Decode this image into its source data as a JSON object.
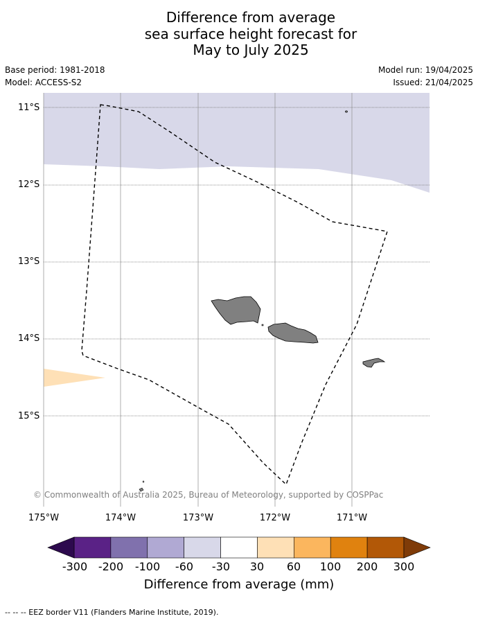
{
  "title": {
    "line1": "Difference from average",
    "line2": "sea surface height forecast for",
    "line3": "May to July 2025"
  },
  "meta": {
    "base_period": "Base period: 1981-2018",
    "model": "Model: ACCESS-S2",
    "model_run": "Model run: 19/04/2025",
    "issued": "Issued: 21/04/2025"
  },
  "map": {
    "lat_labels": [
      "11°S",
      "12°S",
      "13°S",
      "14°S",
      "15°S"
    ],
    "lon_labels": [
      "175°W",
      "174°W",
      "173°W",
      "172°W",
      "171°W"
    ],
    "copyright": "© Commonwealth of Australia 2025, Bureau of Meteorology, supported by COSPPac",
    "land_color": "#808080",
    "eez_style": "dashed black"
  },
  "colorbar": {
    "ticks": [
      "-300",
      "-200",
      "-100",
      "-60",
      "-30",
      "30",
      "60",
      "100",
      "200",
      "300"
    ],
    "colors": [
      "#2d0a4e",
      "#5a2286",
      "#8071ad",
      "#b0a9d3",
      "#d8d8e9",
      "#ffffff",
      "#fee0b6",
      "#fbb65e",
      "#e0820f",
      "#b25807",
      "#7f3b08"
    ],
    "label": "Difference from average (mm)"
  },
  "footnote": "--  --  -- EEZ border V11 (Flanders Marine Institute, 2019)."
}
